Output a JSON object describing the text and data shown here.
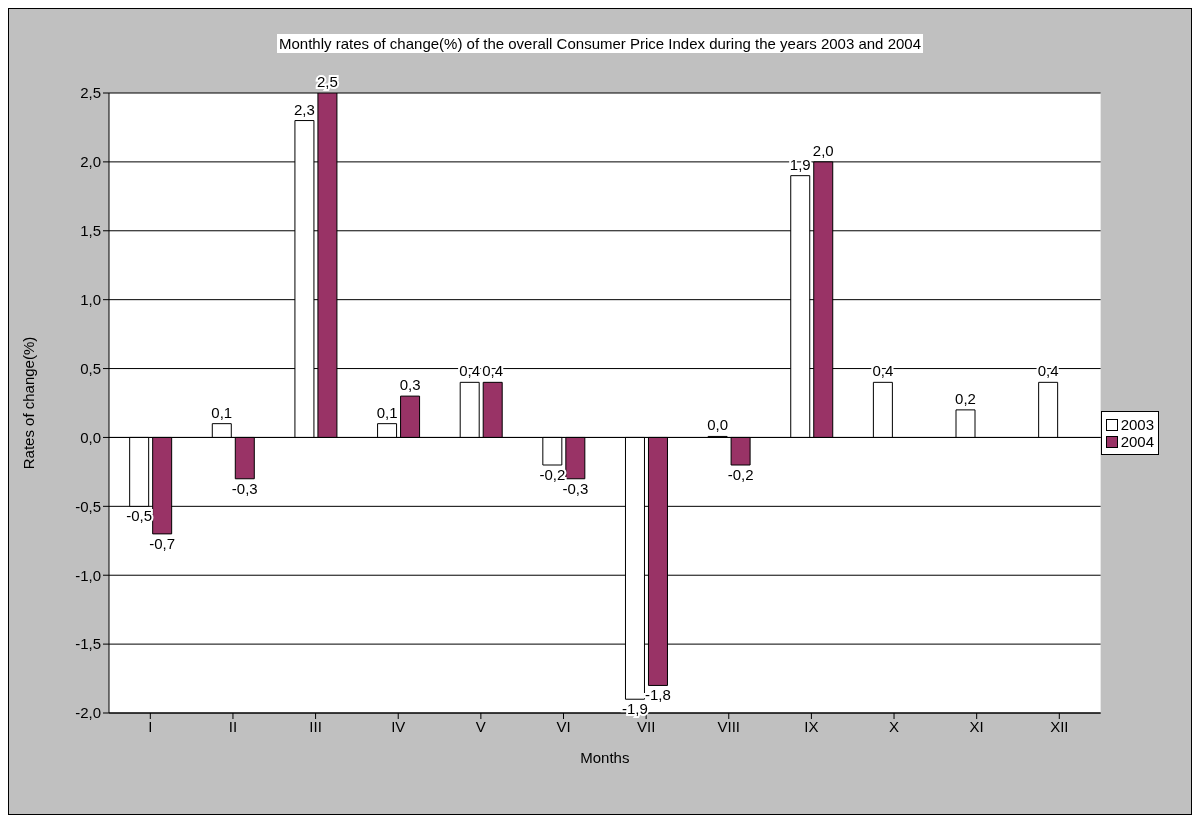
{
  "chart_data": {
    "type": "bar",
    "title": "Monthly rates of change(%) of the overall Consumer Price Index during the years 2003 and 2004",
    "xlabel": "Months",
    "ylabel": "Rates of change(%)",
    "categories": [
      "I",
      "II",
      "III",
      "IV",
      "V",
      "VI",
      "VII",
      "VIII",
      "IX",
      "X",
      "XI",
      "XII"
    ],
    "series": [
      {
        "name": "2003",
        "color": "#ffffff",
        "values": [
          -0.5,
          0.1,
          2.3,
          0.1,
          0.4,
          -0.2,
          -1.9,
          0.0,
          1.9,
          0.4,
          0.2,
          0.4
        ],
        "value_labels": [
          "-0,5",
          "0,1",
          "2,3",
          "0,1",
          "0,4",
          "-0,2",
          "-1,9",
          "0,0",
          "1,9",
          "0,4",
          "0,2",
          "0,4"
        ]
      },
      {
        "name": "2004",
        "color": "#993366",
        "values": [
          -0.7,
          -0.3,
          2.5,
          0.3,
          0.4,
          -0.3,
          -1.8,
          -0.2,
          2.0,
          null,
          null,
          null
        ],
        "value_labels": [
          "-0,7",
          "-0,3",
          "2,5",
          "0,3",
          "0,4",
          "-0,3",
          "-1,8",
          "-0,2",
          "2,0",
          null,
          null,
          null
        ]
      }
    ],
    "ylim": [
      -2.0,
      2.5
    ],
    "yticks": [
      {
        "value": -2.0,
        "label": "-2,0"
      },
      {
        "value": -1.5,
        "label": "-1,5"
      },
      {
        "value": -1.0,
        "label": "-1,0"
      },
      {
        "value": -0.5,
        "label": "-0,5"
      },
      {
        "value": 0.0,
        "label": "0,0"
      },
      {
        "value": 0.5,
        "label": "0,5"
      },
      {
        "value": 1.0,
        "label": "1,0"
      },
      {
        "value": 1.5,
        "label": "1,5"
      },
      {
        "value": 2.0,
        "label": "2,0"
      },
      {
        "value": 2.5,
        "label": "2,5"
      }
    ],
    "grid": "y",
    "legend": "right"
  }
}
